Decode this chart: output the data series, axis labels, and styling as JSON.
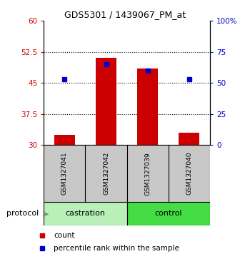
{
  "title": "GDS5301 / 1439067_PM_at",
  "samples": [
    "GSM1327041",
    "GSM1327042",
    "GSM1327039",
    "GSM1327040"
  ],
  "red_values": [
    32.5,
    51.0,
    48.5,
    33.0
  ],
  "blue_values": [
    53,
    65,
    60,
    53
  ],
  "ylim_left": [
    30,
    60
  ],
  "ylim_right": [
    0,
    100
  ],
  "yticks_left": [
    30,
    37.5,
    45,
    52.5,
    60
  ],
  "yticks_right": [
    0,
    25,
    50,
    75,
    100
  ],
  "ytick_labels_left": [
    "30",
    "37.5",
    "45",
    "52.5",
    "60"
  ],
  "ytick_labels_right": [
    "0",
    "25",
    "50",
    "75",
    "100%"
  ],
  "left_axis_color": "#cc0000",
  "right_axis_color": "#0000cc",
  "bar_color": "#cc0000",
  "marker_color": "#0000cc",
  "bar_width": 0.5,
  "sample_box_color": "#c8c8c8",
  "protocol_row_color_castration": "#b8f0b8",
  "protocol_row_color_control": "#44dd44",
  "legend_count_color": "#cc0000",
  "legend_marker_color": "#0000cc",
  "dotted_ticks": [
    37.5,
    45.0,
    52.5
  ],
  "castration_label": "castration",
  "control_label": "control",
  "protocol_label": "protocol"
}
